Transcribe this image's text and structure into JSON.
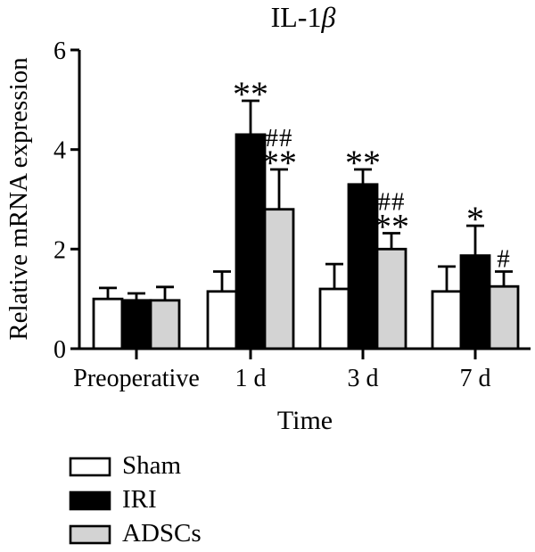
{
  "figure": {
    "title": {
      "prefix": "IL-1",
      "symbol": "β",
      "full": "IL-1β"
    }
  },
  "chart_data": {
    "type": "bar",
    "title": "IL-1β",
    "xlabel": "Time",
    "ylabel": "Relative mRNA expression",
    "ylim": [
      0,
      6
    ],
    "ytick_values": [
      0,
      2,
      4,
      6
    ],
    "ytick_labels": [
      "0",
      "2",
      "4",
      "6"
    ],
    "categories": [
      "Preoperative",
      "1 d",
      "3 d",
      "7 d"
    ],
    "grid": false,
    "legend_position": "bottom-left",
    "error_bars": "upper, capped",
    "series": [
      {
        "name": "Sham",
        "fill": "#ffffff",
        "values": [
          1.0,
          1.15,
          1.2,
          1.15
        ],
        "errors": [
          0.22,
          0.4,
          0.5,
          0.5
        ],
        "annotations": [
          [],
          [],
          [],
          []
        ]
      },
      {
        "name": "IRI",
        "fill": "#000000",
        "values": [
          0.97,
          4.3,
          3.3,
          1.87
        ],
        "errors": [
          0.14,
          0.68,
          0.3,
          0.6
        ],
        "annotations": [
          [],
          [
            "**"
          ],
          [
            "**"
          ],
          [
            "*"
          ]
        ]
      },
      {
        "name": "ADSCs",
        "fill": "#d3d3d3",
        "values": [
          0.97,
          2.8,
          2.0,
          1.25
        ],
        "errors": [
          0.27,
          0.8,
          0.32,
          0.3
        ],
        "annotations": [
          [],
          [
            "##",
            "**"
          ],
          [
            "##",
            "**"
          ],
          [
            "#"
          ]
        ]
      }
    ]
  },
  "legend": {
    "items": [
      {
        "label": "Sham",
        "fill": "#ffffff"
      },
      {
        "label": "IRI",
        "fill": "#000000"
      },
      {
        "label": "ADSCs",
        "fill": "#d3d3d3"
      }
    ]
  }
}
